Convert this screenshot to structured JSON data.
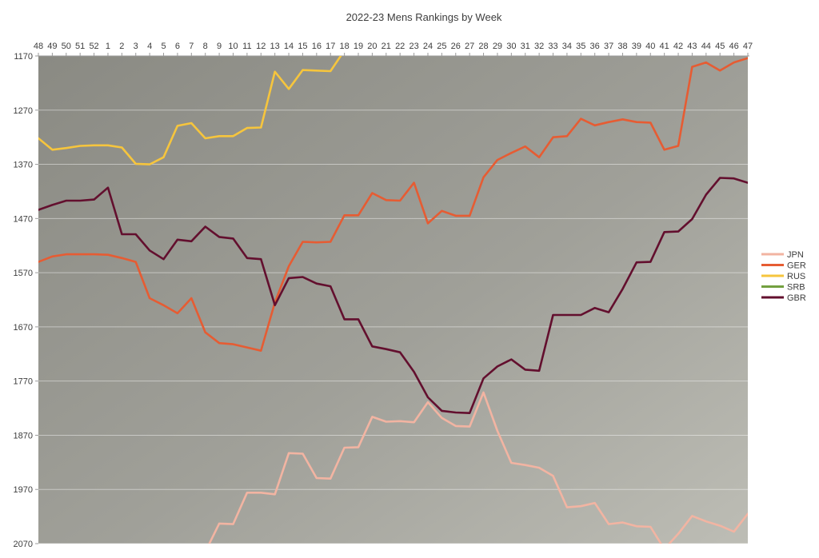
{
  "chart_data": {
    "type": "line",
    "title": "2022-23 Mens Rankings by Week",
    "legend_position": "right",
    "grid": "horizontal",
    "x_axis": {
      "position": "top",
      "labels": [
        "48",
        "49",
        "50",
        "51",
        "52",
        "1",
        "2",
        "3",
        "4",
        "5",
        "6",
        "7",
        "8",
        "9",
        "10",
        "11",
        "12",
        "13",
        "14",
        "15",
        "16",
        "17",
        "18",
        "19",
        "20",
        "21",
        "22",
        "23",
        "24",
        "25",
        "26",
        "27",
        "28",
        "29",
        "30",
        "31",
        "32",
        "33",
        "34",
        "35",
        "36",
        "37",
        "38",
        "39",
        "40",
        "41",
        "42",
        "43",
        "44",
        "45",
        "46",
        "47"
      ]
    },
    "y_axis": {
      "min": 1170,
      "max": 2070,
      "inverted": true,
      "ticks": [
        1170,
        1270,
        1370,
        1470,
        1570,
        1670,
        1770,
        1870,
        1970,
        2070
      ]
    },
    "series": [
      {
        "name": "JPN",
        "color": "#f2b4a2",
        "values": [
          null,
          null,
          null,
          null,
          null,
          null,
          null,
          null,
          null,
          null,
          null,
          null,
          2085,
          2033,
          2034,
          1976,
          1976,
          1979,
          1903,
          1904,
          1949,
          1950,
          1893,
          1892,
          1836,
          1845,
          1844,
          1846,
          1809,
          1838,
          1853,
          1854,
          1791,
          1862,
          1921,
          1925,
          1930,
          1945,
          2003,
          2001,
          1995,
          2034,
          2031,
          2038,
          2039,
          2080,
          2052,
          2019,
          2029,
          2037,
          2048,
          2015
        ]
      },
      {
        "name": "GER",
        "color": "#e65c33",
        "values": [
          1550,
          1540,
          1536,
          1536,
          1536,
          1537,
          1543,
          1550,
          1617,
          1630,
          1645,
          1617,
          1680,
          1700,
          1702,
          1708,
          1714,
          1625,
          1558,
          1513,
          1514,
          1513,
          1464,
          1464,
          1423,
          1436,
          1437,
          1404,
          1479,
          1456,
          1465,
          1465,
          1394,
          1362,
          1349,
          1337,
          1357,
          1320,
          1318,
          1286,
          1298,
          1292,
          1287,
          1292,
          1293,
          1343,
          1336,
          1190,
          1182,
          1197,
          1182,
          1174
        ]
      },
      {
        "name": "RUS",
        "color": "#f6c53d",
        "values": [
          1322,
          1343,
          1340,
          1336,
          1335,
          1335,
          1339,
          1369,
          1370,
          1357,
          1299,
          1294,
          1322,
          1318,
          1318,
          1303,
          1302,
          1199,
          1231,
          1196,
          1197,
          1198,
          1160,
          null,
          null,
          null,
          null,
          null,
          null,
          null,
          null,
          null,
          null,
          null,
          null,
          null,
          null,
          null,
          null,
          null,
          null,
          null,
          null,
          null,
          null,
          null,
          null,
          null,
          null,
          null,
          null,
          null
        ]
      },
      {
        "name": "SRB",
        "color": "#73a040",
        "visible_in_range": false,
        "values": [
          null,
          null,
          null,
          null,
          null,
          null,
          null,
          null,
          null,
          null,
          null,
          null,
          null,
          null,
          null,
          null,
          null,
          null,
          null,
          null,
          null,
          null,
          null,
          null,
          null,
          null,
          null,
          null,
          null,
          null,
          null,
          null,
          null,
          null,
          null,
          null,
          null,
          null,
          null,
          null,
          null,
          null,
          null,
          null,
          null,
          null,
          null,
          null,
          null,
          null,
          null,
          null
        ]
      },
      {
        "name": "GBR",
        "color": "#630f2e",
        "values": [
          1454,
          1445,
          1437,
          1437,
          1435,
          1413,
          1499,
          1499,
          1529,
          1545,
          1509,
          1512,
          1485,
          1504,
          1507,
          1543,
          1545,
          1630,
          1580,
          1578,
          1590,
          1595,
          1656,
          1656,
          1706,
          1711,
          1717,
          1753,
          1800,
          1825,
          1828,
          1829,
          1765,
          1743,
          1730,
          1749,
          1751,
          1648,
          1648,
          1648,
          1635,
          1643,
          1600,
          1551,
          1550,
          1495,
          1494,
          1471,
          1426,
          1395,
          1396,
          1404
        ]
      }
    ],
    "plot_style": {
      "background_gradient": [
        "#8a8a83",
        "#a0a099",
        "#bdbdb5"
      ],
      "gridline_color": "rgba(255,255,255,0.45)",
      "axis_color": "#9b9b9b",
      "label_color": "#3d3d3d"
    }
  }
}
